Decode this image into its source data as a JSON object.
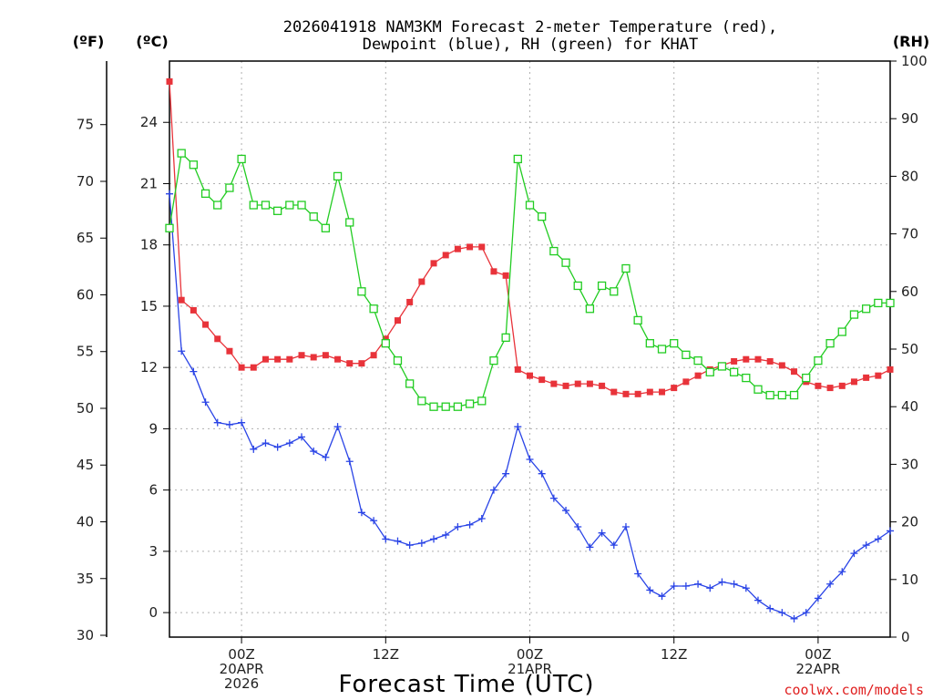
{
  "chart_data": {
    "type": "line",
    "title_line1": "2026041918 NAM3KM Forecast 2-meter Temperature (red),",
    "title_line2": "Dewpoint (blue), RH (green) for KHAT",
    "xlabel": "Forecast Time (UTC)",
    "credit": "coolwx.com/models",
    "units": {
      "fahrenheit": "(ºF)",
      "celsius": "(ºC)",
      "rh": "(RH)"
    },
    "hours": [
      0,
      1,
      2,
      3,
      4,
      5,
      6,
      7,
      8,
      9,
      10,
      11,
      12,
      13,
      14,
      15,
      16,
      17,
      18,
      19,
      20,
      21,
      22,
      23,
      24,
      25,
      26,
      27,
      28,
      29,
      30,
      31,
      32,
      33,
      34,
      35,
      36,
      37,
      38,
      39,
      40,
      41,
      42,
      43,
      44,
      45,
      46,
      47,
      48,
      49,
      50,
      51,
      52,
      53,
      54,
      55,
      56,
      57,
      58,
      59,
      60
    ],
    "x_range_hours": [
      0,
      60
    ],
    "x_ticks": [
      {
        "hour": 6,
        "lines": [
          "00Z",
          "20APR",
          "2026"
        ]
      },
      {
        "hour": 18,
        "lines": [
          "12Z"
        ]
      },
      {
        "hour": 30,
        "lines": [
          "00Z",
          "21APR"
        ]
      },
      {
        "hour": 42,
        "lines": [
          "12Z"
        ]
      },
      {
        "hour": 54,
        "lines": [
          "00Z",
          "22APR"
        ]
      }
    ],
    "celsius_axis": {
      "range": [
        -1.2,
        27
      ],
      "ticks": [
        0,
        3,
        6,
        9,
        12,
        15,
        18,
        21,
        24
      ]
    },
    "fahrenheit_axis": {
      "ticks": [
        30,
        35,
        40,
        45,
        50,
        55,
        60,
        65,
        70,
        75
      ]
    },
    "rh_axis": {
      "range": [
        0,
        100
      ],
      "ticks": [
        0,
        10,
        20,
        30,
        40,
        50,
        60,
        70,
        80,
        90,
        100
      ]
    },
    "series": [
      {
        "name": "2-meter Temperature",
        "unit": "C",
        "color": "#e8333a",
        "marker": "filled-square",
        "values": [
          26.0,
          15.3,
          14.8,
          14.1,
          13.4,
          12.8,
          12.0,
          12.0,
          12.4,
          12.4,
          12.4,
          12.6,
          12.5,
          12.6,
          12.4,
          12.2,
          12.2,
          12.6,
          13.4,
          14.3,
          15.2,
          16.2,
          17.1,
          17.5,
          17.8,
          17.9,
          17.9,
          16.7,
          16.5,
          11.9,
          11.6,
          11.4,
          11.2,
          11.1,
          11.2,
          11.2,
          11.1,
          10.8,
          10.7,
          10.7,
          10.8,
          10.8,
          11.0,
          11.3,
          11.6,
          11.9,
          12.1,
          12.3,
          12.4,
          12.4,
          12.3,
          12.1,
          11.8,
          11.3,
          11.1,
          11.0,
          11.1,
          11.3,
          11.5,
          11.6,
          11.9
        ]
      },
      {
        "name": "Dewpoint",
        "unit": "C",
        "color": "#2a44e6",
        "marker": "plus",
        "values": [
          20.5,
          12.8,
          11.8,
          10.3,
          9.3,
          9.2,
          9.3,
          8.0,
          8.3,
          8.1,
          8.3,
          8.6,
          7.9,
          7.6,
          9.1,
          7.4,
          4.9,
          4.5,
          3.6,
          3.5,
          3.3,
          3.4,
          3.6,
          3.8,
          4.2,
          4.3,
          4.6,
          6.0,
          6.8,
          9.1,
          7.5,
          6.8,
          5.6,
          5.0,
          4.2,
          3.2,
          3.9,
          3.3,
          4.2,
          1.9,
          1.1,
          0.8,
          1.3,
          1.3,
          1.4,
          1.2,
          1.5,
          1.4,
          1.2,
          0.6,
          0.2,
          0.0,
          -0.3,
          0.0,
          0.7,
          1.4,
          2.0,
          2.9,
          3.3,
          3.6,
          4.0
        ]
      },
      {
        "name": "Relative Humidity",
        "unit": "%",
        "color": "#22cc22",
        "marker": "open-square",
        "values": [
          71,
          84,
          82,
          77,
          75,
          78,
          83,
          75,
          75,
          74,
          75,
          75,
          73,
          71,
          80,
          72,
          60,
          57,
          51,
          48,
          44,
          41,
          40,
          40,
          40,
          40.5,
          41,
          48,
          52,
          83,
          75,
          73,
          67,
          65,
          61,
          57,
          61,
          60,
          64,
          55,
          51,
          50,
          51,
          49,
          48,
          46,
          47,
          46,
          45,
          43,
          42,
          42,
          42,
          45,
          48,
          51,
          53,
          56,
          57,
          58,
          58
        ]
      }
    ]
  }
}
